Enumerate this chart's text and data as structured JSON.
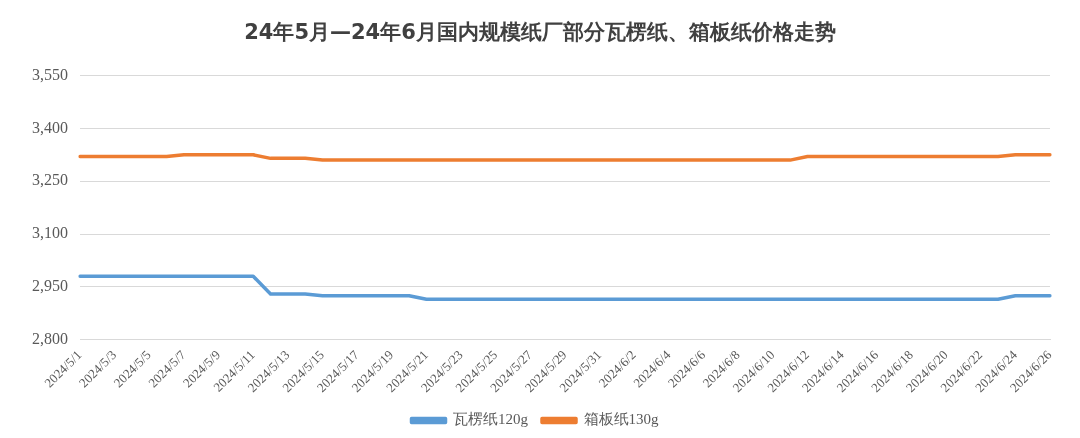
{
  "chart_data": {
    "type": "line",
    "title": "24年5月—24年6月国内规模纸厂部分瓦楞纸、箱板纸价格走势",
    "categories": [
      "2024/5/1",
      null,
      "2024/5/3",
      null,
      "2024/5/5",
      null,
      "2024/5/7",
      null,
      "2024/5/9",
      null,
      "2024/5/11",
      null,
      "2024/5/13",
      null,
      "2024/5/15",
      null,
      "2024/5/17",
      null,
      "2024/5/19",
      null,
      "2024/5/21",
      null,
      "2024/5/23",
      null,
      "2024/5/25",
      null,
      "2024/5/27",
      null,
      "2024/5/29",
      null,
      "2024/5/31",
      null,
      "2024/6/2",
      null,
      "2024/6/4",
      null,
      "2024/6/6",
      null,
      "2024/6/8",
      null,
      "2024/6/10",
      null,
      "2024/6/12",
      null,
      "2024/6/14",
      null,
      "2024/6/16",
      null,
      "2024/6/18",
      null,
      "2024/6/20",
      null,
      "2024/6/22",
      null,
      "2024/6/24",
      null,
      "2024/6/26"
    ],
    "series": [
      {
        "name": "瓦楞纸120g",
        "color": "#5b9bd5",
        "values": [
          2980,
          2980,
          2980,
          2980,
          2980,
          2980,
          2980,
          2980,
          2980,
          2980,
          2980,
          2930,
          2930,
          2930,
          2925,
          2925,
          2925,
          2925,
          2925,
          2925,
          2915,
          2915,
          2915,
          2915,
          2915,
          2915,
          2915,
          2915,
          2915,
          2915,
          2915,
          2915,
          2915,
          2915,
          2915,
          2915,
          2915,
          2915,
          2915,
          2915,
          2915,
          2915,
          2915,
          2915,
          2915,
          2915,
          2915,
          2915,
          2915,
          2915,
          2915,
          2915,
          2915,
          2915,
          2925,
          2925,
          2925
        ]
      },
      {
        "name": "箱板纸130g",
        "color": "#ed7d31",
        "values": [
          3320,
          3320,
          3320,
          3320,
          3320,
          3320,
          3325,
          3325,
          3325,
          3325,
          3325,
          3315,
          3315,
          3315,
          3310,
          3310,
          3310,
          3310,
          3310,
          3310,
          3310,
          3310,
          3310,
          3310,
          3310,
          3310,
          3310,
          3310,
          3310,
          3310,
          3310,
          3310,
          3310,
          3310,
          3310,
          3310,
          3310,
          3310,
          3310,
          3310,
          3310,
          3310,
          3320,
          3320,
          3320,
          3320,
          3320,
          3320,
          3320,
          3320,
          3320,
          3320,
          3320,
          3320,
          3325,
          3325,
          3325
        ]
      }
    ],
    "ylim": [
      2800,
      3550
    ],
    "yticks": [
      {
        "value": 2800,
        "label": "2,800"
      },
      {
        "value": 2950,
        "label": "2,950"
      },
      {
        "value": 3100,
        "label": "3,100"
      },
      {
        "value": 3250,
        "label": "3,250"
      },
      {
        "value": 3400,
        "label": "3,400"
      },
      {
        "value": 3550,
        "label": "3,550"
      }
    ],
    "grid": "y",
    "legend": "bottom",
    "marker": "none",
    "line_style": "solid"
  }
}
